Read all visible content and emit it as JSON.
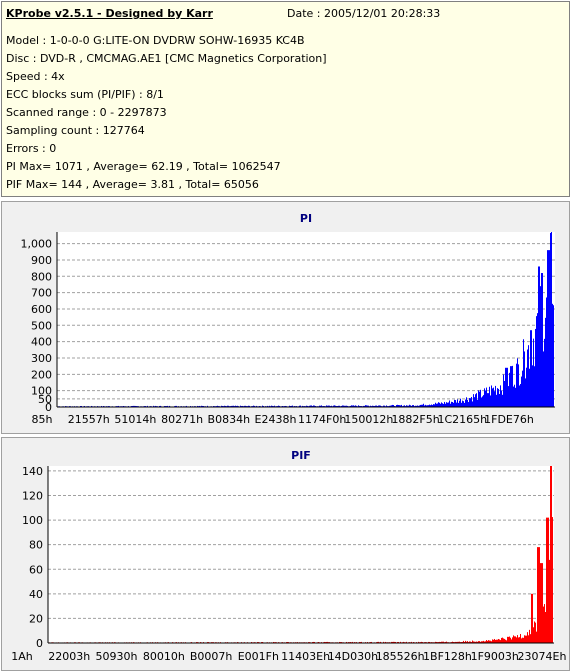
{
  "info": {
    "title": "KProbe v2.5.1 - Designed by Karr",
    "date": "Date : 2005/12/01 20:28:33",
    "lines": [
      "Model : 1-0-0-0 G:LITE-ON DVDRW SOHW-16935 KC4B",
      "Disc : DVD-R , CMCMAG.AE1 [CMC Magnetics Corporation]",
      "Speed : 4x",
      "ECC blocks sum (PI/PIF) : 8/1",
      "Scanned range : 0 - 2297873",
      "Sampling count : 127764",
      "Errors : 0",
      "PI Max= 1071 , Average= 62.19 , Total= 1062547",
      "PIF Max= 144 , Average= 3.81 , Total= 65056"
    ]
  },
  "chart_data": [
    {
      "type": "bar",
      "title": "PI",
      "color": "#0000ff",
      "title_color": "#000080",
      "ylim": [
        0,
        1071
      ],
      "yticks": [
        0,
        50,
        100,
        200,
        300,
        400,
        500,
        600,
        700,
        800,
        900,
        "1,000"
      ],
      "ytick_values": [
        0,
        50,
        100,
        200,
        300,
        400,
        500,
        600,
        700,
        800,
        900,
        1000
      ],
      "xticks": [
        "85h",
        "21557h",
        "51014h",
        "80271h",
        "B0834h",
        "E2438h",
        "1174F0h",
        "150012h",
        "1882F5h",
        "1C2165h",
        "1FDE76h"
      ],
      "grid": true,
      "profile": [
        [
          0,
          5
        ],
        [
          0.4,
          7
        ],
        [
          0.6,
          9
        ],
        [
          0.72,
          12
        ],
        [
          0.78,
          30
        ],
        [
          0.82,
          55
        ],
        [
          0.86,
          100
        ],
        [
          0.9,
          170
        ],
        [
          0.93,
          280
        ],
        [
          0.95,
          420
        ],
        [
          0.965,
          560
        ],
        [
          0.975,
          680
        ],
        [
          0.985,
          800
        ],
        [
          0.993,
          880
        ],
        [
          1.0,
          1071
        ]
      ],
      "spikes": [
        [
          0.905,
          240
        ],
        [
          0.915,
          250
        ],
        [
          0.94,
          340
        ],
        [
          0.955,
          470
        ],
        [
          0.97,
          860
        ],
        [
          0.976,
          820
        ],
        [
          0.99,
          960
        ]
      ]
    },
    {
      "type": "bar",
      "title": "PIF",
      "color": "#ff0000",
      "title_color": "#000080",
      "ylim": [
        0,
        144
      ],
      "yticks": [
        0,
        20,
        40,
        60,
        80,
        100,
        120,
        140
      ],
      "ytick_values": [
        0,
        20,
        40,
        60,
        80,
        100,
        120,
        140
      ],
      "xticks": [
        "1Ah",
        "22003h",
        "50930h",
        "80010h",
        "B0007h",
        "E001Fh",
        "11403Eh",
        "14D030h",
        "185526h",
        "1BF128h",
        "1F9003h",
        "23074Eh"
      ],
      "grid": true,
      "profile": [
        [
          0,
          0.5
        ],
        [
          0.7,
          0.8
        ],
        [
          0.8,
          1
        ],
        [
          0.88,
          2.5
        ],
        [
          0.92,
          5
        ],
        [
          0.95,
          10
        ],
        [
          0.97,
          18
        ],
        [
          0.985,
          40
        ],
        [
          0.995,
          90
        ],
        [
          1.0,
          144
        ]
      ],
      "spikes": [
        [
          0.96,
          40
        ],
        [
          0.972,
          78
        ],
        [
          0.978,
          65
        ],
        [
          0.99,
          102
        ],
        [
          0.997,
          144
        ]
      ]
    }
  ]
}
